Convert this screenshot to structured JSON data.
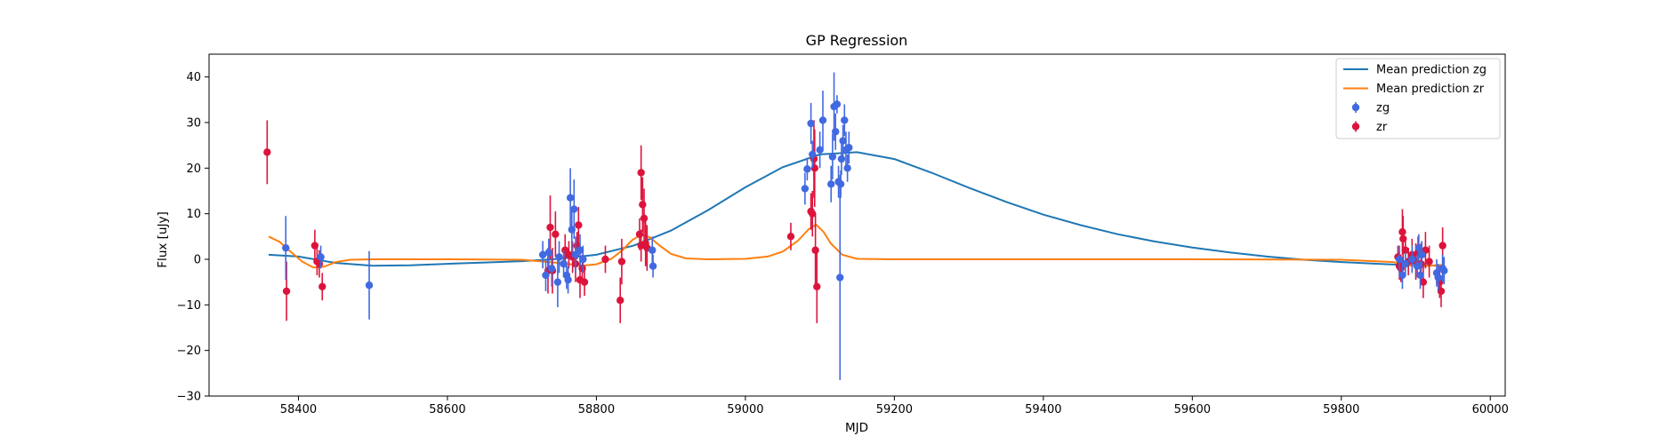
{
  "chart_data": {
    "type": "scatter",
    "title": "GP Regression",
    "xlabel": "MJD",
    "ylabel": "Flux [uJy]",
    "xlim": [
      58280,
      60020
    ],
    "ylim": [
      -30,
      45
    ],
    "xticks": [
      58400,
      58600,
      58800,
      59000,
      59200,
      59400,
      59600,
      59800,
      60000
    ],
    "yticks": [
      -30,
      -20,
      -10,
      0,
      10,
      20,
      30,
      40
    ],
    "grid": false,
    "legend_position": "top-right",
    "series": [
      {
        "name": "Mean prediction zg",
        "kind": "line",
        "color": "#1f77b4",
        "x": [
          58360,
          58400,
          58450,
          58500,
          58550,
          58600,
          58650,
          58700,
          58750,
          58800,
          58850,
          58900,
          58950,
          59000,
          59050,
          59100,
          59150,
          59200,
          59250,
          59300,
          59350,
          59400,
          59450,
          59500,
          59550,
          59600,
          59650,
          59700,
          59750,
          59800,
          59850,
          59880,
          59900,
          59935
        ],
        "y": [
          1.0,
          0.6,
          -0.8,
          -1.4,
          -1.3,
          -1.0,
          -0.7,
          -0.4,
          0.1,
          1.0,
          3.0,
          6.3,
          10.8,
          15.8,
          20.2,
          23.0,
          23.5,
          22.0,
          19.0,
          15.7,
          12.6,
          9.8,
          7.5,
          5.5,
          3.9,
          2.6,
          1.5,
          0.6,
          -0.1,
          -0.6,
          -1.0,
          -1.2,
          -1.3,
          -1.4
        ]
      },
      {
        "name": "Mean prediction zr",
        "kind": "line",
        "color": "#ff7f0e",
        "x": [
          58360,
          58375,
          58390,
          58405,
          58420,
          58435,
          58450,
          58470,
          58500,
          58600,
          58700,
          58750,
          58780,
          58800,
          58820,
          58835,
          58848,
          58860,
          58872,
          58885,
          58900,
          58920,
          58950,
          59000,
          59030,
          59050,
          59070,
          59085,
          59095,
          59105,
          59115,
          59130,
          59150,
          59200,
          59400,
          59600,
          59800,
          59870,
          59890,
          59910,
          59935
        ],
        "y": [
          5.0,
          3.8,
          1.6,
          -0.5,
          -1.8,
          -1.6,
          -0.6,
          -0.1,
          0.0,
          0.0,
          -0.1,
          -0.8,
          -1.4,
          -1.1,
          0.1,
          2.0,
          4.2,
          5.4,
          4.8,
          3.0,
          1.2,
          0.2,
          0.0,
          0.1,
          0.6,
          1.7,
          4.0,
          6.6,
          7.6,
          6.0,
          3.4,
          1.0,
          0.1,
          0.0,
          0.0,
          0.0,
          -0.1,
          -0.6,
          -1.3,
          -1.5,
          -1.2
        ]
      },
      {
        "name": "zg",
        "kind": "errorbar",
        "color": "#4169e1",
        "points": [
          [
            58383,
            2.5,
            7.0
          ],
          [
            58430,
            0.5,
            2.5
          ],
          [
            58495,
            -5.7,
            7.5
          ],
          [
            58728,
            1.0,
            3.0
          ],
          [
            58732,
            -3.5,
            3.5
          ],
          [
            58736,
            1.5,
            3.0
          ],
          [
            58740,
            -2.0,
            4.0
          ],
          [
            58748,
            -5.0,
            5.5
          ],
          [
            58750,
            0.5,
            3.5
          ],
          [
            58756,
            -1.0,
            3.0
          ],
          [
            58760,
            -3.5,
            3.0
          ],
          [
            58762,
            -4.5,
            3.0
          ],
          [
            58765,
            13.5,
            6.5
          ],
          [
            58767,
            6.5,
            5.0
          ],
          [
            58770,
            11.0,
            6.5
          ],
          [
            58772,
            1.0,
            4.0
          ],
          [
            58778,
            2.0,
            3.5
          ],
          [
            58782,
            0.0,
            3.0
          ],
          [
            58875,
            2.0,
            3.0
          ],
          [
            58876,
            -1.5,
            2.5
          ],
          [
            59080,
            15.5,
            3.5
          ],
          [
            59083,
            19.8,
            2.5
          ],
          [
            59088,
            29.8,
            4.5
          ],
          [
            59090,
            23.0,
            3.0
          ],
          [
            59100,
            24.0,
            4.0
          ],
          [
            59104,
            30.5,
            6.5
          ],
          [
            59115,
            16.5,
            4.0
          ],
          [
            59117,
            22.5,
            5.0
          ],
          [
            59119,
            33.5,
            7.5
          ],
          [
            59121,
            28.0,
            4.0
          ],
          [
            59123,
            34.0,
            2.0
          ],
          [
            59125,
            17.0,
            3.5
          ],
          [
            59127,
            -4.0,
            22.5
          ],
          [
            59129,
            22.0,
            3.5
          ],
          [
            59131,
            26.0,
            3.5
          ],
          [
            59133,
            30.5,
            3.5
          ],
          [
            59135,
            24.0,
            4.0
          ],
          [
            59137,
            20.0,
            3.0
          ],
          [
            59139,
            24.5,
            3.5
          ],
          [
            59128,
            16.5,
            3.0
          ],
          [
            59878,
            0.0,
            3.0
          ],
          [
            59882,
            -3.5,
            3.0
          ],
          [
            59886,
            -1.0,
            2.5
          ],
          [
            59895,
            0.0,
            3.0
          ],
          [
            59902,
            -1.5,
            2.5
          ],
          [
            59904,
            2.5,
            3.0
          ],
          [
            59906,
            -3.5,
            3.0
          ],
          [
            59908,
            1.0,
            3.0
          ],
          [
            59928,
            -3.0,
            3.0
          ],
          [
            59930,
            -4.0,
            3.0
          ],
          [
            59936,
            -2.0,
            3.0
          ],
          [
            59938,
            -2.5,
            3.0
          ]
        ]
      },
      {
        "name": "zr",
        "kind": "errorbar",
        "color": "#dc143c",
        "points": [
          [
            58358,
            23.5,
            7.0
          ],
          [
            58384,
            -7.0,
            6.5
          ],
          [
            58422,
            3.0,
            3.5
          ],
          [
            58425,
            -0.5,
            3.0
          ],
          [
            58428,
            -1.0,
            3.0
          ],
          [
            58432,
            -6.0,
            3.0
          ],
          [
            58735,
            -2.5,
            5.0
          ],
          [
            58738,
            7.0,
            7.0
          ],
          [
            58741,
            -2.5,
            5.0
          ],
          [
            58745,
            5.5,
            5.0
          ],
          [
            58758,
            2.0,
            3.5
          ],
          [
            58763,
            1.0,
            3.0
          ],
          [
            58768,
            0.5,
            3.5
          ],
          [
            58772,
            -1.0,
            4.0
          ],
          [
            58774,
            3.0,
            3.0
          ],
          [
            58776,
            7.5,
            4.0
          ],
          [
            58778,
            -4.5,
            4.0
          ],
          [
            58781,
            -2.0,
            3.0
          ],
          [
            58784,
            -5.0,
            3.0
          ],
          [
            58812,
            0.0,
            3.0
          ],
          [
            58832,
            -9.0,
            5.0
          ],
          [
            58834,
            -0.5,
            5.0
          ],
          [
            58858,
            5.5,
            3.5
          ],
          [
            58860,
            19.0,
            6.0
          ],
          [
            58862,
            12.0,
            6.0
          ],
          [
            58864,
            9.0,
            6.5
          ],
          [
            58866,
            3.5,
            5.0
          ],
          [
            58868,
            2.5,
            5.0
          ],
          [
            58860,
            3.0,
            3.5
          ],
          [
            59061,
            5.0,
            3.0
          ],
          [
            59088,
            10.5,
            4.0
          ],
          [
            59090,
            10.0,
            5.0
          ],
          [
            59092,
            22.0,
            8.5
          ],
          [
            59093,
            20.0,
            8.5
          ],
          [
            59094,
            2.0,
            8.0
          ],
          [
            59096,
            -6.0,
            8.0
          ],
          [
            59876,
            0.5,
            2.5
          ],
          [
            59878,
            -1.5,
            3.0
          ],
          [
            59880,
            -2.0,
            3.0
          ],
          [
            59882,
            6.0,
            5.0
          ],
          [
            59883,
            4.5,
            5.0
          ],
          [
            59886,
            2.0,
            3.0
          ],
          [
            59890,
            -0.5,
            3.0
          ],
          [
            59895,
            1.0,
            3.5
          ],
          [
            59900,
            -0.5,
            4.0
          ],
          [
            59903,
            1.5,
            3.5
          ],
          [
            59907,
            -1.0,
            4.5
          ],
          [
            59910,
            -5.0,
            3.5
          ],
          [
            59913,
            2.0,
            4.0
          ],
          [
            59918,
            -0.5,
            3.5
          ],
          [
            59932,
            -5.0,
            3.5
          ],
          [
            59934,
            -7.0,
            3.5
          ],
          [
            59936,
            3.0,
            4.0
          ]
        ]
      }
    ]
  }
}
